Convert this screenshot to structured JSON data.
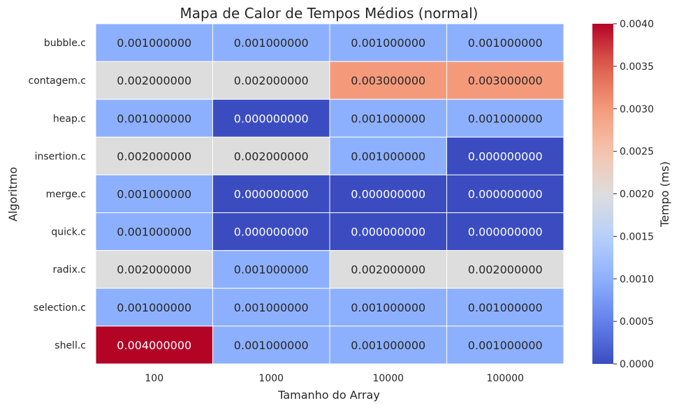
{
  "chart_data": {
    "type": "heatmap",
    "title": "Mapa de Calor de Tempos Médios (normal)",
    "xlabel": "Tamanho do Array",
    "ylabel": "Algoritmo",
    "x": [
      "100",
      "1000",
      "10000",
      "100000"
    ],
    "y": [
      "bubble.c",
      "contagem.c",
      "heap.c",
      "insertion.c",
      "merge.c",
      "quick.c",
      "radix.c",
      "selection.c",
      "shell.c"
    ],
    "values": [
      [
        0.001,
        0.001,
        0.001,
        0.001
      ],
      [
        0.002,
        0.002,
        0.003,
        0.003
      ],
      [
        0.001,
        0.0,
        0.001,
        0.001
      ],
      [
        0.002,
        0.002,
        0.001,
        0.0
      ],
      [
        0.001,
        0.0,
        0.0,
        0.0
      ],
      [
        0.001,
        0.0,
        0.0,
        0.0
      ],
      [
        0.002,
        0.001,
        0.002,
        0.002
      ],
      [
        0.001,
        0.001,
        0.001,
        0.001
      ],
      [
        0.004,
        0.001,
        0.001,
        0.001
      ]
    ],
    "annotation_decimals": 9,
    "colorbar": {
      "label": "Tempo (ms)",
      "vmin": 0.0,
      "vmax": 0.004,
      "ticks": [
        0.0,
        0.0005,
        0.001,
        0.0015,
        0.002,
        0.0025,
        0.003,
        0.0035,
        0.004
      ],
      "tick_labels": [
        "0.0000",
        "0.0005",
        "0.0010",
        "0.0015",
        "0.0020",
        "0.0025",
        "0.0030",
        "0.0035",
        "0.0040"
      ]
    },
    "colormap": "coolwarm",
    "cell_border_color": "#ffffff",
    "grid": false
  }
}
